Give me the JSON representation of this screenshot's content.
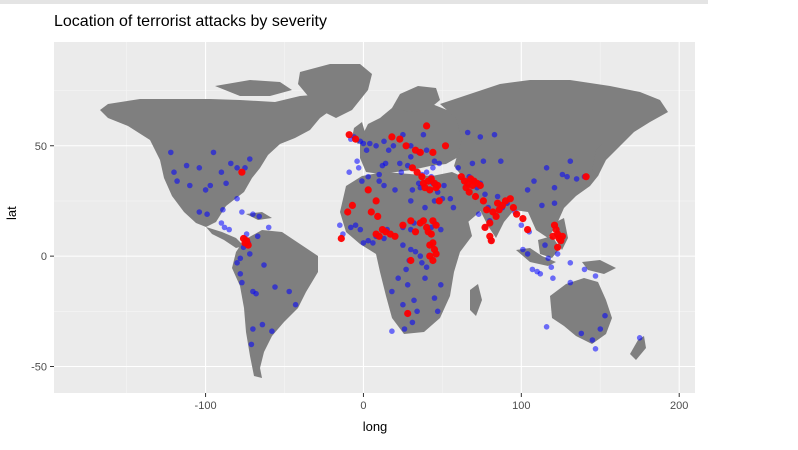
{
  "chart_data": {
    "type": "scatter",
    "title": "Location of terrorist attacks by severity",
    "xlabel": "long",
    "ylabel": "lat",
    "xlim": [
      -196,
      210
    ],
    "ylim": [
      -62,
      97
    ],
    "x_ticks": [
      -100,
      0,
      100,
      200
    ],
    "y_ticks": [
      -50,
      0,
      50
    ],
    "x_tick_labels": [
      "-100",
      "0",
      "100",
      "200"
    ],
    "y_tick_labels": [
      "-50",
      "0",
      "50"
    ],
    "grid": true,
    "background": "#ebebeb",
    "land_color": "#7f7f7f",
    "series": [
      {
        "color": "#0000ff",
        "values": [
          [
            -80,
            40
          ],
          [
            -84,
            42
          ],
          [
            -75,
            40
          ],
          [
            -90,
            38
          ],
          [
            -100,
            30
          ],
          [
            -118,
            34
          ],
          [
            -122,
            47
          ],
          [
            -104,
            40
          ],
          [
            -97,
            32
          ],
          [
            -87,
            33
          ],
          [
            -80,
            26
          ],
          [
            -72,
            44
          ],
          [
            -110,
            32
          ],
          [
            -95,
            47
          ],
          [
            -120,
            38
          ],
          [
            -112,
            41
          ],
          [
            -77,
            20
          ],
          [
            -70,
            19
          ],
          [
            -66,
            18
          ],
          [
            -90,
            15
          ],
          [
            -88,
            13
          ],
          [
            -85,
            12
          ],
          [
            -99,
            19
          ],
          [
            -89,
            21
          ],
          [
            -104,
            20
          ],
          [
            -73,
            6
          ],
          [
            -76,
            4
          ],
          [
            -74,
            10
          ],
          [
            -75,
            8
          ],
          [
            -78,
            -1
          ],
          [
            -78,
            -8
          ],
          [
            -77,
            -12
          ],
          [
            -70,
            -16
          ],
          [
            -68,
            -17
          ],
          [
            -70,
            -33
          ],
          [
            -58,
            -34
          ],
          [
            -64,
            -31
          ],
          [
            -47,
            -16
          ],
          [
            -43,
            -22
          ],
          [
            -56,
            -14
          ],
          [
            -63,
            -4
          ],
          [
            -72,
            1
          ],
          [
            -67,
            9
          ],
          [
            -60,
            13
          ],
          [
            -80,
            -3
          ],
          [
            -71,
            -40
          ],
          [
            -8,
            53
          ],
          [
            -6,
            54
          ],
          [
            -2,
            52
          ],
          [
            0,
            51
          ],
          [
            2,
            48
          ],
          [
            4,
            51
          ],
          [
            -3,
            40
          ],
          [
            -9,
            38
          ],
          [
            -4,
            43
          ],
          [
            8,
            50
          ],
          [
            13,
            52
          ],
          [
            16,
            48
          ],
          [
            19,
            50
          ],
          [
            12,
            41
          ],
          [
            14,
            42
          ],
          [
            23,
            42
          ],
          [
            24,
            38
          ],
          [
            28,
            41
          ],
          [
            30,
            45
          ],
          [
            35,
            47
          ],
          [
            40,
            48
          ],
          [
            30,
            50
          ],
          [
            25,
            55
          ],
          [
            38,
            55
          ],
          [
            45,
            43
          ],
          [
            48,
            42
          ],
          [
            44,
            40
          ],
          [
            37,
            37
          ],
          [
            40,
            38
          ],
          [
            35,
            33
          ],
          [
            36,
            31
          ],
          [
            39,
            22
          ],
          [
            45,
            25
          ],
          [
            50,
            26
          ],
          [
            47,
            29
          ],
          [
            44,
            33
          ],
          [
            43,
            36
          ],
          [
            51,
            32
          ],
          [
            55,
            26
          ],
          [
            57,
            22
          ],
          [
            45,
            15
          ],
          [
            43,
            13
          ],
          [
            49,
            12
          ],
          [
            32,
            15
          ],
          [
            30,
            12
          ],
          [
            25,
            13
          ],
          [
            15,
            12
          ],
          [
            13,
            8
          ],
          [
            8,
            9
          ],
          [
            6,
            6
          ],
          [
            3,
            7
          ],
          [
            0,
            6
          ],
          [
            -2,
            12
          ],
          [
            -5,
            14
          ],
          [
            -8,
            13
          ],
          [
            -13,
            10
          ],
          [
            -15,
            14
          ],
          [
            -1,
            34
          ],
          [
            3,
            36
          ],
          [
            10,
            34
          ],
          [
            10,
            37
          ],
          [
            13,
            32
          ],
          [
            20,
            30
          ],
          [
            31,
            30
          ],
          [
            30,
            25
          ],
          [
            25,
            5
          ],
          [
            30,
            3
          ],
          [
            33,
            2
          ],
          [
            36,
            0
          ],
          [
            37,
            -3
          ],
          [
            40,
            -5
          ],
          [
            29,
            -2
          ],
          [
            27,
            -6
          ],
          [
            22,
            -10
          ],
          [
            28,
            -13
          ],
          [
            18,
            -16
          ],
          [
            32,
            -20
          ],
          [
            34,
            -25
          ],
          [
            28,
            -26
          ],
          [
            31,
            -30
          ],
          [
            26,
            -33
          ],
          [
            18,
            -34
          ],
          [
            25,
            -22
          ],
          [
            45,
            -19
          ],
          [
            49,
            -13
          ],
          [
            47,
            -25
          ],
          [
            39,
            -10
          ],
          [
            67,
            36
          ],
          [
            70,
            34
          ],
          [
            72,
            31
          ],
          [
            74,
            33
          ],
          [
            60,
            40
          ],
          [
            69,
            42
          ],
          [
            76,
            43
          ],
          [
            66,
            56
          ],
          [
            83,
            55
          ],
          [
            74,
            54
          ],
          [
            77,
            28
          ],
          [
            79,
            22
          ],
          [
            73,
            19
          ],
          [
            77,
            13
          ],
          [
            80,
            16
          ],
          [
            81,
            7
          ],
          [
            88,
            22
          ],
          [
            91,
            24
          ],
          [
            85,
            27
          ],
          [
            96,
            20
          ],
          [
            100,
            14
          ],
          [
            105,
            11
          ],
          [
            104,
            1
          ],
          [
            101,
            3
          ],
          [
            107,
            -6
          ],
          [
            110,
            -7
          ],
          [
            112,
            -8
          ],
          [
            117,
            -1
          ],
          [
            115,
            5
          ],
          [
            119,
            -5
          ],
          [
            123,
            1
          ],
          [
            120,
            -10
          ],
          [
            131,
            -3
          ],
          [
            140,
            -6
          ],
          [
            147,
            -9
          ],
          [
            116,
            40
          ],
          [
            121,
            31
          ],
          [
            113,
            23
          ],
          [
            104,
            30
          ],
          [
            108,
            34
          ],
          [
            87,
            43
          ],
          [
            126,
            37
          ],
          [
            135,
            35
          ],
          [
            140,
            36
          ],
          [
            129,
            36
          ],
          [
            131,
            43
          ],
          [
            121,
            24
          ],
          [
            150,
            -33
          ],
          [
            145,
            -38
          ],
          [
            153,
            -27
          ],
          [
            138,
            -35
          ],
          [
            116,
            -32
          ],
          [
            131,
            -12
          ],
          [
            175,
            -37
          ],
          [
            147,
            -42
          ]
        ]
      },
      {
        "color": "#ff0000",
        "values": [
          [
            -77,
            38
          ],
          [
            -74,
            7
          ],
          [
            -75,
            6
          ],
          [
            -73,
            5
          ],
          [
            -76,
            8
          ],
          [
            -14,
            8
          ],
          [
            -10,
            20
          ],
          [
            -7,
            23
          ],
          [
            -5,
            53
          ],
          [
            -9,
            55
          ],
          [
            3,
            30
          ],
          [
            8,
            25
          ],
          [
            5,
            20
          ],
          [
            9,
            18
          ],
          [
            8,
            10
          ],
          [
            12,
            12
          ],
          [
            10,
            9
          ],
          [
            14,
            11
          ],
          [
            17,
            10
          ],
          [
            20,
            9
          ],
          [
            25,
            14
          ],
          [
            30,
            16
          ],
          [
            33,
            11
          ],
          [
            36,
            15
          ],
          [
            38,
            16
          ],
          [
            40,
            13
          ],
          [
            41,
            11
          ],
          [
            43,
            10
          ],
          [
            42,
            5
          ],
          [
            45,
            3
          ],
          [
            44,
            6
          ],
          [
            46,
            1
          ],
          [
            42,
            0
          ],
          [
            44,
            -2
          ],
          [
            30,
            -2
          ],
          [
            28,
            -26
          ],
          [
            18,
            54
          ],
          [
            23,
            53
          ],
          [
            27,
            50
          ],
          [
            33,
            48
          ],
          [
            36,
            47
          ],
          [
            31,
            40
          ],
          [
            34,
            38
          ],
          [
            37,
            36
          ],
          [
            38,
            33
          ],
          [
            39,
            31
          ],
          [
            41,
            34
          ],
          [
            43,
            35
          ],
          [
            45,
            33
          ],
          [
            46,
            31
          ],
          [
            47,
            32
          ],
          [
            42,
            30
          ],
          [
            44,
            16
          ],
          [
            46,
            14
          ],
          [
            48,
            25
          ],
          [
            40,
            59
          ],
          [
            52,
            50
          ],
          [
            44,
            47
          ],
          [
            62,
            36
          ],
          [
            64,
            34
          ],
          [
            66,
            33
          ],
          [
            68,
            35
          ],
          [
            70,
            34
          ],
          [
            72,
            33
          ],
          [
            65,
            31
          ],
          [
            67,
            29
          ],
          [
            69,
            32
          ],
          [
            74,
            32
          ],
          [
            71,
            27
          ],
          [
            76,
            25
          ],
          [
            78,
            21
          ],
          [
            82,
            20
          ],
          [
            85,
            24
          ],
          [
            88,
            23
          ],
          [
            90,
            25
          ],
          [
            77,
            13
          ],
          [
            80,
            15
          ],
          [
            84,
            18
          ],
          [
            86,
            21
          ],
          [
            93,
            26
          ],
          [
            95,
            22
          ],
          [
            97,
            19
          ],
          [
            80,
            9
          ],
          [
            81,
            7
          ],
          [
            121,
            14
          ],
          [
            123,
            10
          ],
          [
            124,
            8
          ],
          [
            125,
            7
          ],
          [
            122,
            12
          ],
          [
            120,
            9
          ],
          [
            126,
            9
          ],
          [
            141,
            36
          ],
          [
            123,
            4
          ],
          [
            104,
            12
          ],
          [
            101,
            17
          ]
        ]
      }
    ]
  }
}
